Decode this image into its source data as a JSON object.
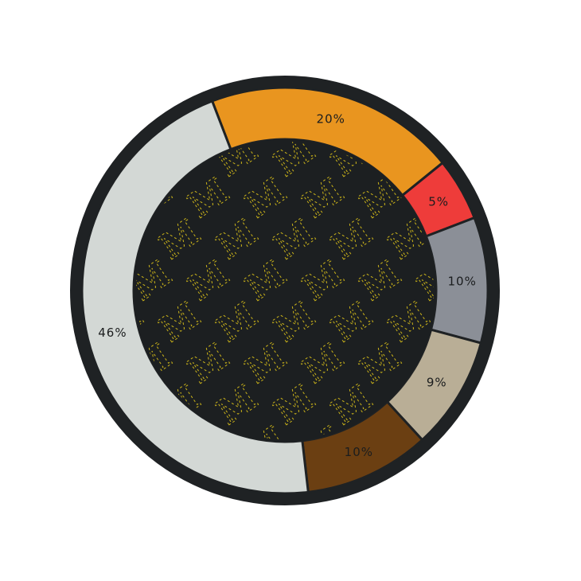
{
  "chart_data": {
    "type": "pie",
    "variant": "donut",
    "title": "",
    "slices": [
      {
        "value": 20,
        "label": "20%",
        "color": "#e9951f"
      },
      {
        "value": 5,
        "label": "5%",
        "color": "#ee3c3a"
      },
      {
        "value": 10,
        "label": "10%",
        "color": "#8b8f97"
      },
      {
        "value": 9,
        "label": "9%",
        "color": "#b9ae96"
      },
      {
        "value": 10,
        "label": "10%",
        "color": "#6b3f12"
      },
      {
        "value": 46,
        "label": "46%",
        "color": "#d3d8d5"
      }
    ],
    "start_angle_deg": -21,
    "direction": "clockwise"
  },
  "colors": {
    "outer_ring": "#1f2224",
    "center_fill": "#1c1f21",
    "pattern_glyph": "#c9b21a",
    "divider": "#1f2224"
  },
  "center_pattern": {
    "icon": "monogram-m-pattern",
    "glyph": "M"
  }
}
